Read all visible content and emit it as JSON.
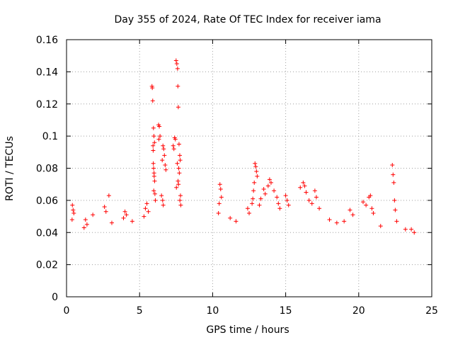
{
  "chart_data": {
    "type": "scatter",
    "title": "Day 355 of 2024, Rate Of TEC Index for receiver iama",
    "xlabel": "GPS time / hours",
    "ylabel": "ROTI / TECUs",
    "xlim": [
      0,
      25
    ],
    "ylim": [
      0,
      0.16
    ],
    "x_ticks": [
      "0",
      "5",
      "10",
      "15",
      "20",
      "25"
    ],
    "y_ticks": [
      "0",
      "0.02",
      "0.04",
      "0.06",
      "0.08",
      "0.1",
      "0.12",
      "0.14",
      "0.16"
    ],
    "grid": true,
    "legend": "none",
    "marker": "+",
    "series": [
      {
        "color": "#ff0000",
        "points": [
          [
            5.85,
            0.131
          ],
          [
            5.87,
            0.13
          ],
          [
            5.9,
            0.122
          ],
          [
            5.95,
            0.105
          ],
          [
            5.98,
            0.1
          ],
          [
            6.02,
            0.096
          ],
          [
            5.92,
            0.094
          ],
          [
            5.93,
            0.091
          ],
          [
            5.94,
            0.083
          ],
          [
            5.96,
            0.08
          ],
          [
            5.99,
            0.077
          ],
          [
            6.0,
            0.075
          ],
          [
            6.03,
            0.072
          ],
          [
            5.97,
            0.066
          ],
          [
            6.05,
            0.064
          ],
          [
            6.08,
            0.06
          ],
          [
            6.3,
            0.107
          ],
          [
            6.35,
            0.106
          ],
          [
            6.4,
            0.1
          ],
          [
            6.32,
            0.098
          ],
          [
            6.6,
            0.094
          ],
          [
            6.65,
            0.092
          ],
          [
            6.7,
            0.088
          ],
          [
            6.55,
            0.085
          ],
          [
            6.75,
            0.082
          ],
          [
            6.8,
            0.079
          ],
          [
            6.5,
            0.063
          ],
          [
            6.58,
            0.06
          ],
          [
            6.62,
            0.057
          ],
          [
            7.5,
            0.147
          ],
          [
            7.55,
            0.145
          ],
          [
            7.6,
            0.142
          ],
          [
            7.62,
            0.131
          ],
          [
            7.65,
            0.118
          ],
          [
            7.4,
            0.099
          ],
          [
            7.45,
            0.098
          ],
          [
            7.3,
            0.094
          ],
          [
            7.35,
            0.092
          ],
          [
            7.7,
            0.095
          ],
          [
            7.75,
            0.088
          ],
          [
            7.78,
            0.085
          ],
          [
            7.58,
            0.083
          ],
          [
            7.68,
            0.08
          ],
          [
            7.72,
            0.077
          ],
          [
            7.63,
            0.072
          ],
          [
            7.66,
            0.07
          ],
          [
            7.52,
            0.068
          ],
          [
            7.8,
            0.063
          ],
          [
            7.76,
            0.06
          ],
          [
            7.82,
            0.057
          ],
          [
            5.5,
            0.058
          ],
          [
            5.4,
            0.055
          ],
          [
            5.6,
            0.053
          ],
          [
            5.3,
            0.05
          ],
          [
            0.4,
            0.057
          ],
          [
            0.45,
            0.054
          ],
          [
            0.5,
            0.052
          ],
          [
            0.38,
            0.048
          ],
          [
            1.3,
            0.048
          ],
          [
            1.4,
            0.045
          ],
          [
            1.2,
            0.043
          ],
          [
            1.8,
            0.051
          ],
          [
            2.6,
            0.056
          ],
          [
            2.7,
            0.053
          ],
          [
            2.9,
            0.063
          ],
          [
            3.1,
            0.046
          ],
          [
            3.9,
            0.049
          ],
          [
            4.0,
            0.053
          ],
          [
            4.1,
            0.051
          ],
          [
            4.5,
            0.047
          ],
          [
            10.5,
            0.07
          ],
          [
            10.55,
            0.067
          ],
          [
            10.6,
            0.062
          ],
          [
            10.45,
            0.058
          ],
          [
            10.4,
            0.052
          ],
          [
            11.2,
            0.049
          ],
          [
            11.6,
            0.047
          ],
          [
            12.4,
            0.055
          ],
          [
            12.5,
            0.052
          ],
          [
            12.9,
            0.083
          ],
          [
            12.95,
            0.081
          ],
          [
            13.0,
            0.078
          ],
          [
            13.05,
            0.075
          ],
          [
            12.85,
            0.071
          ],
          [
            12.8,
            0.066
          ],
          [
            12.75,
            0.061
          ],
          [
            12.7,
            0.058
          ],
          [
            13.2,
            0.057
          ],
          [
            13.3,
            0.061
          ],
          [
            13.5,
            0.067
          ],
          [
            13.6,
            0.064
          ],
          [
            13.8,
            0.069
          ],
          [
            13.9,
            0.073
          ],
          [
            14.0,
            0.071
          ],
          [
            14.2,
            0.066
          ],
          [
            14.4,
            0.062
          ],
          [
            14.5,
            0.058
          ],
          [
            14.6,
            0.055
          ],
          [
            15.0,
            0.063
          ],
          [
            15.1,
            0.06
          ],
          [
            15.2,
            0.057
          ],
          [
            16.0,
            0.068
          ],
          [
            16.2,
            0.071
          ],
          [
            16.3,
            0.069
          ],
          [
            16.4,
            0.065
          ],
          [
            16.6,
            0.06
          ],
          [
            16.8,
            0.058
          ],
          [
            17.0,
            0.066
          ],
          [
            17.1,
            0.062
          ],
          [
            17.3,
            0.055
          ],
          [
            18.0,
            0.048
          ],
          [
            18.5,
            0.046
          ],
          [
            19.0,
            0.047
          ],
          [
            19.4,
            0.054
          ],
          [
            19.6,
            0.051
          ],
          [
            20.3,
            0.059
          ],
          [
            20.5,
            0.057
          ],
          [
            20.7,
            0.062
          ],
          [
            20.8,
            0.063
          ],
          [
            20.9,
            0.055
          ],
          [
            21.0,
            0.052
          ],
          [
            21.5,
            0.044
          ],
          [
            22.3,
            0.082
          ],
          [
            22.35,
            0.076
          ],
          [
            22.4,
            0.071
          ],
          [
            22.45,
            0.06
          ],
          [
            22.5,
            0.054
          ],
          [
            22.6,
            0.047
          ],
          [
            23.2,
            0.042
          ],
          [
            23.6,
            0.042
          ],
          [
            23.8,
            0.04
          ]
        ]
      }
    ]
  }
}
